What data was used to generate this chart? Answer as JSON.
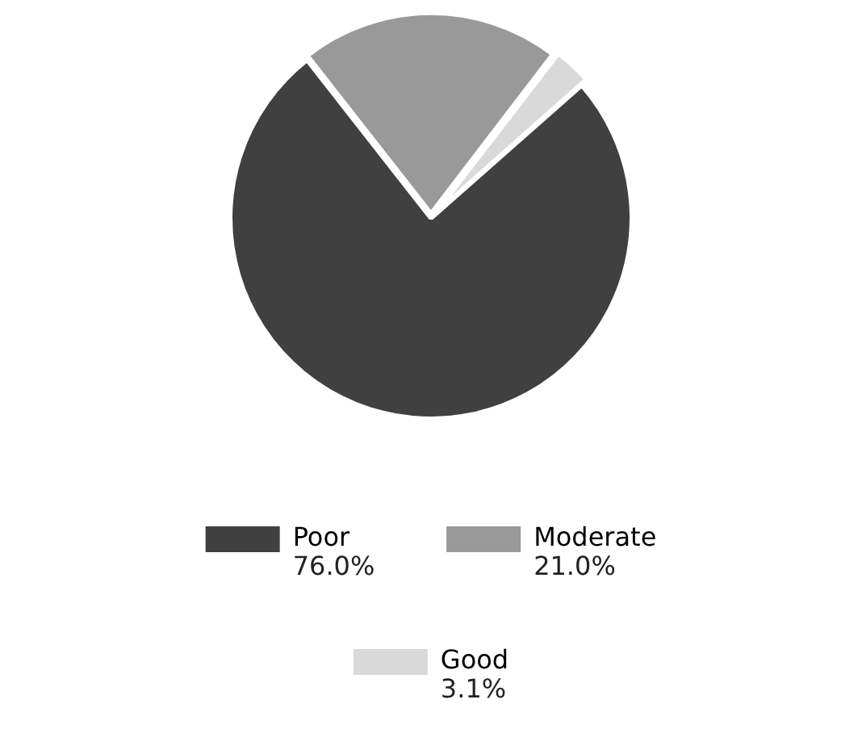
{
  "chart_data": {
    "type": "pie",
    "categories": [
      "Poor",
      "Moderate",
      "Good"
    ],
    "values": [
      76.0,
      21.0,
      3.1
    ],
    "value_labels": [
      "76.0%",
      "21.0%",
      "3.1%"
    ],
    "colors": [
      "#404040",
      "#999999",
      "#d9d9d9"
    ],
    "legend": "bottom"
  }
}
